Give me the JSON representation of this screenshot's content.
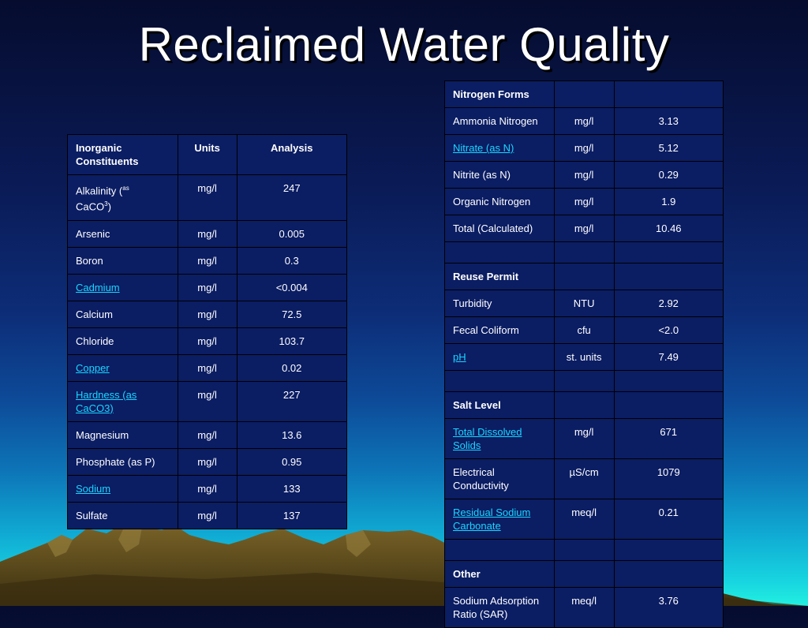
{
  "title": "Reclaimed Water Quality",
  "inorganic": {
    "headers": [
      "Inorganic Constituents",
      "Units",
      "Analysis"
    ],
    "alkalinity": {
      "prefix": "Alkalinity (",
      "sup": "as",
      "mid": " CaCO",
      "sub": "3",
      "suffix": ")",
      "unit": "mg/l",
      "value": "247"
    },
    "rows": [
      {
        "name": "Arsenic",
        "unit": "mg/l",
        "value": "0.005"
      },
      {
        "name": "Boron",
        "unit": "mg/l",
        "value": "0.3"
      },
      {
        "name": "Cadmium",
        "unit": "mg/l",
        "value": "<0.004"
      },
      {
        "name": "Calcium",
        "unit": "mg/l",
        "value": "72.5"
      },
      {
        "name": "Chloride",
        "unit": "mg/l",
        "value": "103.7"
      },
      {
        "name": "Copper",
        "unit": "mg/l",
        "value": "0.02"
      },
      {
        "name": "Hardness (as CaCO3)",
        "unit": "mg/l",
        "value": "227"
      },
      {
        "name": "Magnesium",
        "unit": "mg/l",
        "value": "13.6"
      },
      {
        "name": "Phosphate (as P)",
        "unit": "mg/l",
        "value": "0.95"
      },
      {
        "name": "Sodium",
        "unit": "mg/l",
        "value": "133"
      },
      {
        "name": "Sulfate",
        "unit": "mg/l",
        "value": "137"
      }
    ]
  },
  "quality": {
    "nitrogen_header": "Nitrogen Forms",
    "nitrogen": [
      {
        "name": "Ammonia Nitrogen",
        "unit": "mg/l",
        "value": "3.13"
      },
      {
        "name": "Nitrate (as N)",
        "unit": "mg/l",
        "value": "5.12"
      },
      {
        "name": "Nitrite (as N)",
        "unit": "mg/l",
        "value": "0.29"
      },
      {
        "name": "Organic Nitrogen",
        "unit": "mg/l",
        "value": "1.9"
      },
      {
        "name": "Total (Calculated)",
        "unit": "mg/l",
        "value": "10.46"
      }
    ],
    "reuse_header": "Reuse Permit",
    "reuse": [
      {
        "name": "Turbidity",
        "unit": "NTU",
        "value": "2.92"
      },
      {
        "name": "Fecal Coliform",
        "unit": "cfu",
        "value": "<2.0"
      },
      {
        "name": "pH",
        "unit": "st. units",
        "value": "7.49"
      }
    ],
    "salt_header": "Salt Level",
    "salt": [
      {
        "name": "Total Dissolved Solids",
        "unit": "mg/l",
        "value": "671"
      },
      {
        "name": "Electrical Conductivity",
        "unit_mu": "µ",
        "unit": "S/cm",
        "value": "1079"
      },
      {
        "name": "Residual Sodium Carbonate",
        "unit": "meq/l",
        "value": "0.21"
      }
    ],
    "other_header": "Other",
    "other": [
      {
        "name": "Sodium Adsorption Ratio (SAR)",
        "unit": "meq/l",
        "value": "3.76"
      }
    ]
  },
  "colors": {
    "table_bg": "#0b1d63",
    "link": "#19d7ff",
    "mountain": "#5a4a1c"
  }
}
